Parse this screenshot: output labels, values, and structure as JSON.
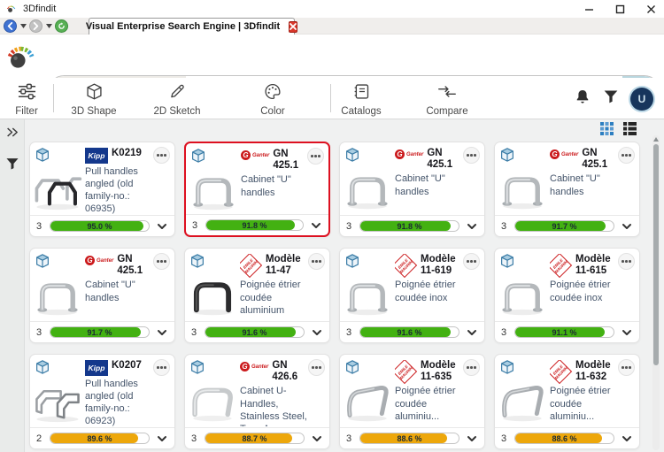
{
  "window": {
    "title": "3Dfindit"
  },
  "tab": {
    "title": "Visual Enterprise Search Engine | 3Dfindit"
  },
  "search": {
    "value": "",
    "placeholder": ""
  },
  "toolbar": {
    "items": [
      {
        "label": "Filter"
      },
      {
        "label": "3D Shape"
      },
      {
        "label": "2D Sketch"
      },
      {
        "label": "Color"
      },
      {
        "label": "Catalogs"
      },
      {
        "label": "Compare"
      }
    ],
    "avatar_initial": "U"
  },
  "colors": {
    "progress_green": "#43b112",
    "progress_orange": "#eda70b",
    "selected_red": "#dd1020",
    "accent_blue": "#2d7fc1"
  },
  "cards": [
    {
      "brand": "kipp",
      "brand_label": "Kipp",
      "title": "K0219",
      "description": "Pull handles angled (old family-no.: 06935)",
      "count": "3",
      "percent": 95.0,
      "percent_label": "95.0 %",
      "bar": "green",
      "image": "handle-kipp-multi",
      "selected": false
    },
    {
      "brand": "ganter",
      "brand_initial": "G",
      "brand_label": "Ganter",
      "title": "GN 425.1",
      "description": "Cabinet \"U\" handles",
      "count": "3",
      "percent": 91.8,
      "percent_label": "91.8 %",
      "bar": "green",
      "image": "handle-chrome-u",
      "selected": true
    },
    {
      "brand": "ganter",
      "brand_initial": "G",
      "brand_label": "Ganter",
      "title": "GN 425.1",
      "description": "Cabinet \"U\" handles",
      "count": "3",
      "percent": 91.8,
      "percent_label": "91.8 %",
      "bar": "green",
      "image": "handle-chrome-u",
      "selected": false
    },
    {
      "brand": "ganter",
      "brand_initial": "G",
      "brand_label": "Ganter",
      "title": "GN 425.1",
      "description": "Cabinet \"U\" handles",
      "count": "3",
      "percent": 91.7,
      "percent_label": "91.7 %",
      "bar": "green",
      "image": "handle-chrome-u",
      "selected": false
    },
    {
      "brand": "ganter",
      "brand_initial": "G",
      "brand_label": "Ganter",
      "title": "GN 425.1",
      "description": "Cabinet \"U\" handles",
      "count": "3",
      "percent": 91.7,
      "percent_label": "91.7 %",
      "bar": "green",
      "image": "handle-chrome-u",
      "selected": false
    },
    {
      "brand": "maurin",
      "brand_label": "EMILE MAURIN",
      "title": "Modèle 11-47",
      "description": "Poignée étrier coudée aluminium",
      "count": "3",
      "percent": 91.6,
      "percent_label": "91.6 %",
      "bar": "green",
      "image": "handle-black-u",
      "selected": false
    },
    {
      "brand": "maurin",
      "brand_label": "EMILE MAURIN",
      "title": "Modèle 11-619",
      "description": "Poignée étrier coudée inox",
      "count": "3",
      "percent": 91.6,
      "percent_label": "91.6 %",
      "bar": "green",
      "image": "handle-chrome-u",
      "selected": false
    },
    {
      "brand": "maurin",
      "brand_label": "EMILE MAURIN",
      "title": "Modèle 11-615",
      "description": "Poignée étrier coudée inox",
      "count": "3",
      "percent": 91.1,
      "percent_label": "91.1 %",
      "bar": "green",
      "image": "handle-chrome-u",
      "selected": false
    },
    {
      "brand": "kipp",
      "brand_label": "Kipp",
      "title": "K0207",
      "description": "Pull handles angled (old family-no.: 06923)",
      "count": "2",
      "percent": 89.6,
      "percent_label": "89.6 %",
      "bar": "orange",
      "image": "handle-kipp-two",
      "selected": false
    },
    {
      "brand": "ganter",
      "brand_initial": "G",
      "brand_label": "Ganter",
      "title": "GN 426.6",
      "description": "Cabinet U-Handles, Stainless Steel, Type A Mounti...",
      "count": "3",
      "percent": 88.7,
      "percent_label": "88.7 %",
      "bar": "orange",
      "image": "handle-stainless-u",
      "selected": false
    },
    {
      "brand": "maurin",
      "brand_label": "EMILE MAURIN",
      "title": "Modèle 11-635",
      "description": "Poignée étrier coudée aluminiu...",
      "count": "3",
      "percent": 88.6,
      "percent_label": "88.6 %",
      "bar": "orange",
      "image": "handle-alu-u",
      "selected": false
    },
    {
      "brand": "maurin",
      "brand_label": "EMILE MAURIN",
      "title": "Modèle 11-632",
      "description": "Poignée étrier coudée aluminiu...",
      "count": "3",
      "percent": 88.6,
      "percent_label": "88.6 %",
      "bar": "orange",
      "image": "handle-alu-u",
      "selected": false
    }
  ]
}
